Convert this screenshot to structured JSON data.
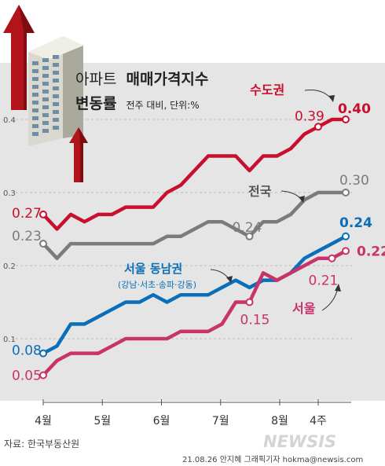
{
  "title_line1_light": "아파트",
  "title_line1_bold": "매매가격지수",
  "title_line2_bold": "변동률",
  "title_line2_light": "전주 대비, 단위:%",
  "source": "자료: 한국부동산원",
  "credit": "21.08.26 안지혜 그래픽기자 hokma@newsis.com",
  "watermark": "NEWSIS",
  "colors": {
    "capital": "#c8102e",
    "national": "#7b7b7b",
    "gangnam": "#0a6fb8",
    "seoul": "#c8336a",
    "band": "#e5e5e5",
    "grid": "#bdbdbd"
  },
  "chart_data": {
    "type": "line",
    "title": "아파트 매매가격지수 변동률",
    "subtitle": "전주 대비, 단위:%",
    "ylim": [
      0,
      0.45
    ],
    "yticks": [
      0.1,
      0.2,
      0.3,
      0.4
    ],
    "ytick_labels": [
      "0.1",
      "0.2",
      "0.3",
      "0.4"
    ],
    "x_labels": [
      {
        "label": "4월",
        "x": 0
      },
      {
        "label": "5월",
        "x": 4.3
      },
      {
        "label": "6월",
        "x": 8.6
      },
      {
        "label": "7월",
        "x": 12.9
      },
      {
        "label": "8월",
        "x": 17.2
      },
      {
        "label": "4주",
        "x": 20
      }
    ],
    "grid": true,
    "series": [
      {
        "name": "수도권",
        "color": "#c8102e",
        "values": [
          0.27,
          0.25,
          0.27,
          0.26,
          0.27,
          0.27,
          0.28,
          0.28,
          0.28,
          0.3,
          0.31,
          0.33,
          0.35,
          0.35,
          0.35,
          0.33,
          0.35,
          0.35,
          0.36,
          0.38,
          0.39,
          0.4,
          0.4
        ],
        "labels": [
          {
            "i": 0,
            "text": "0.27"
          },
          {
            "i": 20,
            "text": "0.39"
          },
          {
            "i": 22,
            "text": "0.40"
          }
        ]
      },
      {
        "name": "전국",
        "color": "#7b7b7b",
        "values": [
          0.23,
          0.21,
          0.23,
          0.23,
          0.23,
          0.23,
          0.23,
          0.23,
          0.23,
          0.24,
          0.24,
          0.25,
          0.26,
          0.26,
          0.25,
          0.24,
          0.26,
          0.26,
          0.27,
          0.29,
          0.3,
          0.3,
          0.3
        ],
        "labels": [
          {
            "i": 0,
            "text": "0.23"
          },
          {
            "i": 15,
            "text": "0.24"
          },
          {
            "i": 22,
            "text": "0.30"
          }
        ]
      },
      {
        "name": "서울 동남권",
        "note": "(강남·서초·송파·강동)",
        "color": "#0a6fb8",
        "values": [
          0.08,
          0.09,
          0.12,
          0.12,
          0.13,
          0.14,
          0.15,
          0.15,
          0.16,
          0.15,
          0.16,
          0.16,
          0.16,
          0.17,
          0.18,
          0.17,
          0.18,
          0.18,
          0.19,
          0.21,
          0.22,
          0.23,
          0.24
        ],
        "labels": [
          {
            "i": 0,
            "text": "0.08"
          },
          {
            "i": 22,
            "text": "0.24"
          }
        ]
      },
      {
        "name": "서울",
        "color": "#c8336a",
        "values": [
          0.05,
          0.07,
          0.08,
          0.08,
          0.08,
          0.09,
          0.1,
          0.1,
          0.1,
          0.1,
          0.11,
          0.11,
          0.11,
          0.12,
          0.15,
          0.15,
          0.19,
          0.18,
          0.19,
          0.2,
          0.21,
          0.21,
          0.22
        ],
        "labels": [
          {
            "i": 0,
            "text": "0.05"
          },
          {
            "i": 15,
            "text": "0.15"
          },
          {
            "i": 21,
            "text": "0.21"
          },
          {
            "i": 22,
            "text": "0.22"
          }
        ]
      }
    ]
  }
}
